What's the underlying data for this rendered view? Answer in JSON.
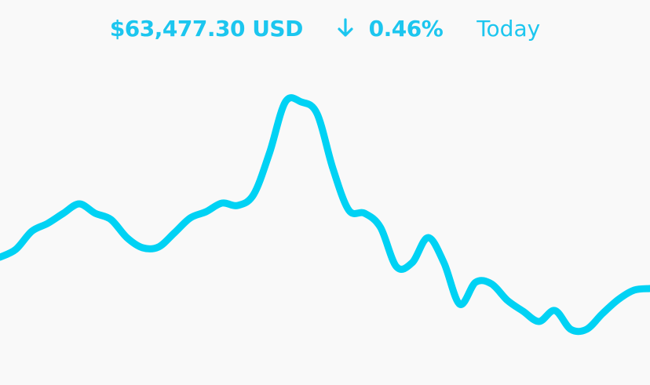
{
  "header": {
    "price": "$63,477.30 USD",
    "change": "0.46%",
    "period": "Today"
  },
  "chart_data": {
    "type": "line",
    "color": "#00d2f4",
    "values": [
      163,
      173,
      196,
      206,
      219,
      231,
      219,
      211,
      188,
      175,
      176,
      194,
      213,
      221,
      232,
      229,
      243,
      296,
      361,
      361,
      346,
      276,
      223,
      219,
      201,
      151,
      156,
      188,
      156,
      103,
      131,
      129,
      108,
      94,
      81,
      95,
      71,
      71,
      91,
      109,
      121,
      123
    ],
    "ylim": [
      0,
      491
    ]
  }
}
